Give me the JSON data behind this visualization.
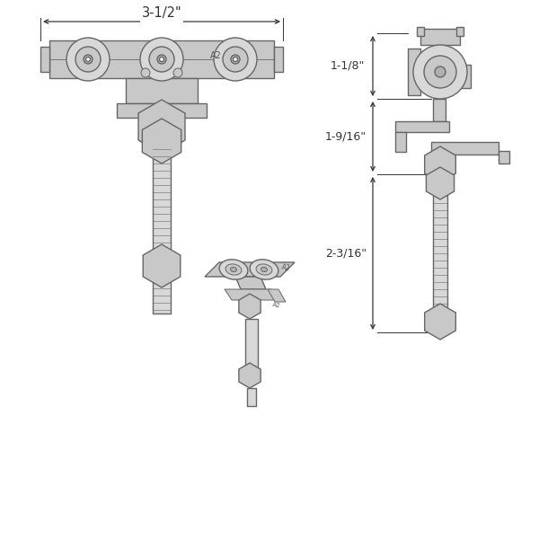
{
  "bg_color": "#ffffff",
  "line_color": "#666666",
  "fill_color": "#c8c8c8",
  "fill_light": "#d8d8d8",
  "fill_dark": "#b0b0b0",
  "dim_color": "#333333",
  "fig_width": 6.0,
  "fig_height": 6.0,
  "dpi": 100,
  "dim_top_label": "3-1/2\"",
  "dim_right_top_label": "1-1/8\"",
  "dim_right_mid_label": "1-9/16\"",
  "dim_right_bot_label": "2-3/16\""
}
